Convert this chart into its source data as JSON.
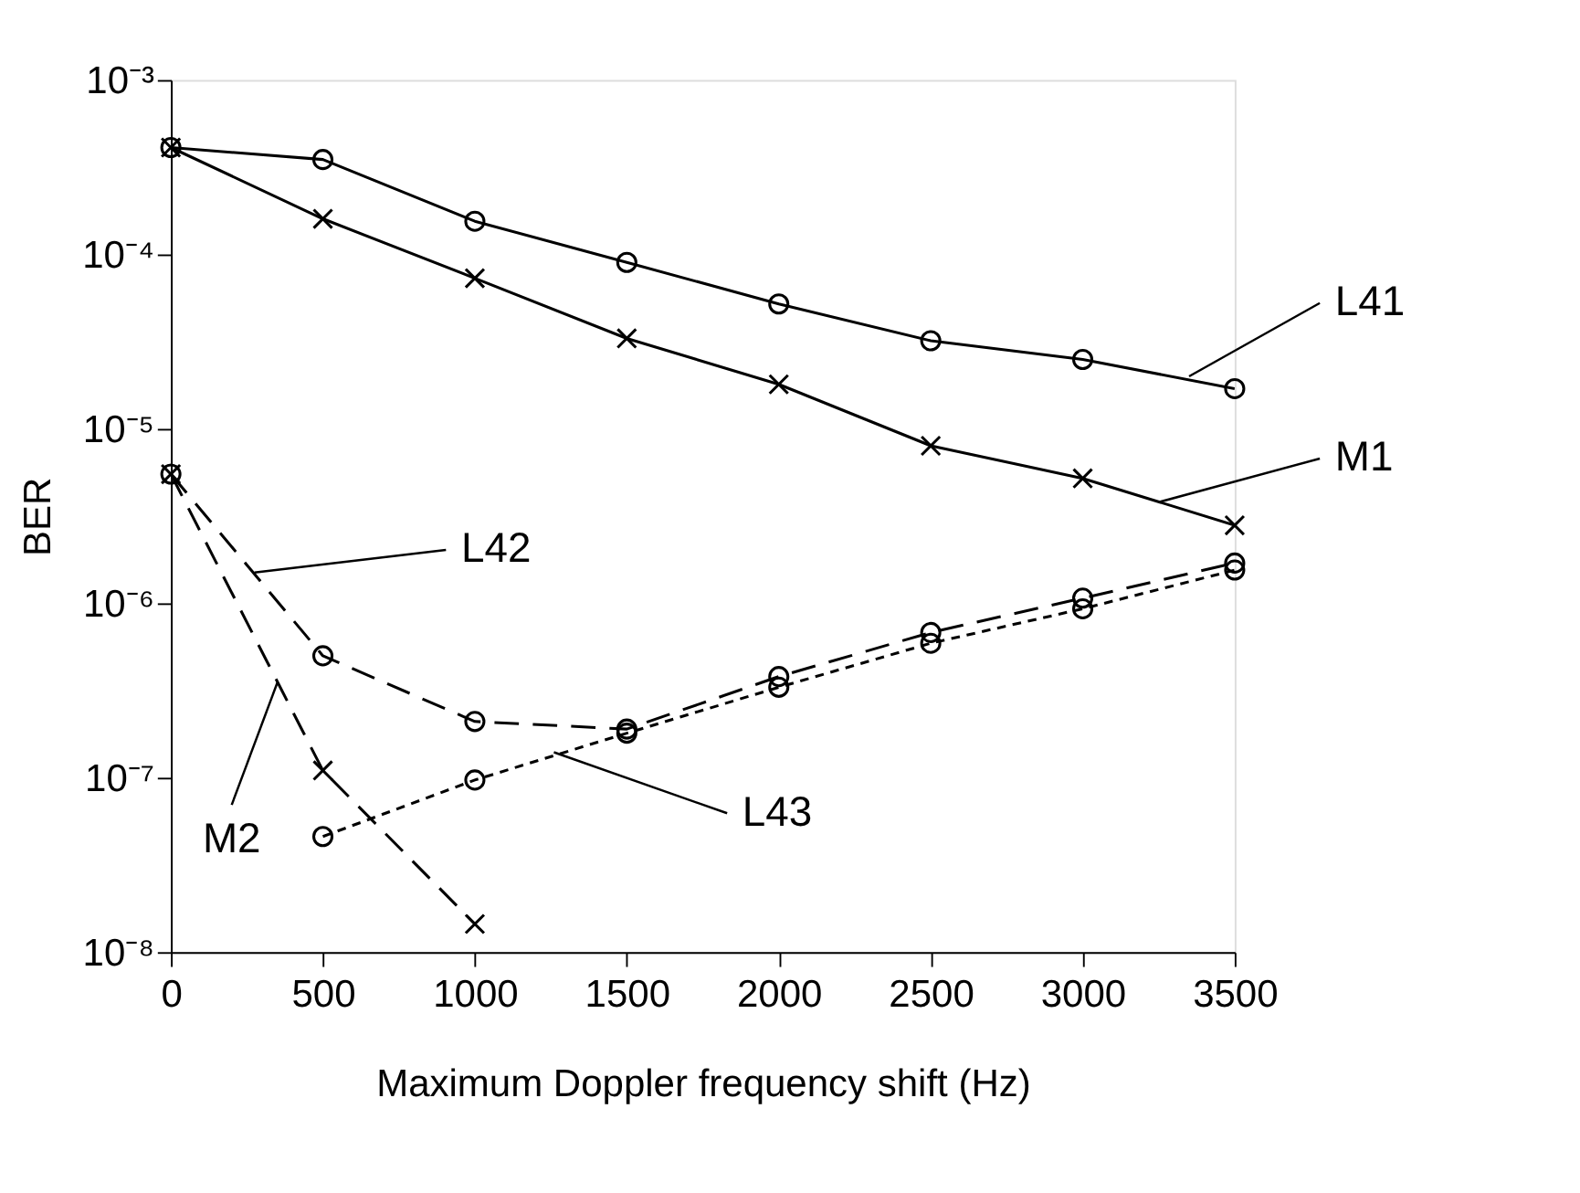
{
  "chart_data": {
    "type": "line",
    "xlabel": "Maximum Doppler frequency shift (Hz)",
    "ylabel": "BER",
    "xlim": [
      0,
      3500
    ],
    "xticks": [
      0,
      500,
      1000,
      1500,
      2000,
      2500,
      3000,
      3500
    ],
    "ylim": [
      1e-08,
      0.001
    ],
    "yticks": [
      {
        "value": 1e-08,
        "label": "10⁻⁸"
      },
      {
        "value": 1e-07,
        "label": "10⁻⁷"
      },
      {
        "value": 1e-06,
        "label": "10⁻⁶"
      },
      {
        "value": 1e-05,
        "label": "10⁻⁵"
      },
      {
        "value": 0.0001,
        "label": "10⁻⁴"
      },
      {
        "value": 0.001,
        "label": "10⁻³"
      }
    ],
    "log": "y",
    "grid": false,
    "series": [
      {
        "color": "#000000",
        "marker": "circle",
        "line_style": "solid",
        "x": [
          0,
          500,
          1000,
          1500,
          2000,
          2500,
          3000,
          3500
        ],
        "values": [
          0.00041,
          0.00035,
          0.000155,
          9e-05,
          5.2e-05,
          3.2e-05,
          2.5e-05,
          1.7e-05
        ]
      },
      {
        "color": "#000000",
        "marker": "cross",
        "line_style": "solid",
        "x": [
          0,
          500,
          1000,
          1500,
          2000,
          2500,
          3000,
          3500
        ],
        "values": [
          0.00041,
          0.00016,
          7.3e-05,
          3.3e-05,
          1.8e-05,
          8e-06,
          5.2e-06,
          2.8e-06
        ]
      },
      {
        "color": "#000000",
        "marker": "circle",
        "line_style": "dashed",
        "x": [
          0,
          500,
          1000,
          1500,
          2000,
          2500,
          3000,
          3500
        ],
        "values": [
          5.5e-06,
          5e-07,
          2.1e-07,
          1.9e-07,
          3.8e-07,
          6.8e-07,
          1.07e-06,
          1.7e-06
        ]
      },
      {
        "color": "#000000",
        "marker": "circle",
        "line_style": "dotted",
        "x": [
          500,
          1000,
          1500,
          2000,
          2500,
          3000,
          3500
        ],
        "values": [
          4.6e-08,
          9.7e-08,
          1.8e-07,
          3.3e-07,
          5.9e-07,
          9.3e-07,
          1.55e-06
        ]
      },
      {
        "color": "#000000",
        "marker": "cross",
        "line_style": "dashed",
        "x": [
          0,
          500,
          1000
        ],
        "values": [
          5.5e-06,
          1.1e-07,
          1.45e-08
        ]
      }
    ],
    "annotations": [
      {
        "text": "L41",
        "x": 3350,
        "y": 2e-05
      },
      {
        "text": "M1",
        "x": 3250,
        "y": 3.8e-06
      },
      {
        "text": "L42",
        "x": 275,
        "y": 1.5e-06
      },
      {
        "text": "M2",
        "x": 350,
        "y": 3.5e-07
      },
      {
        "text": "L43",
        "x": 1260,
        "y": 1.4e-07
      }
    ]
  }
}
